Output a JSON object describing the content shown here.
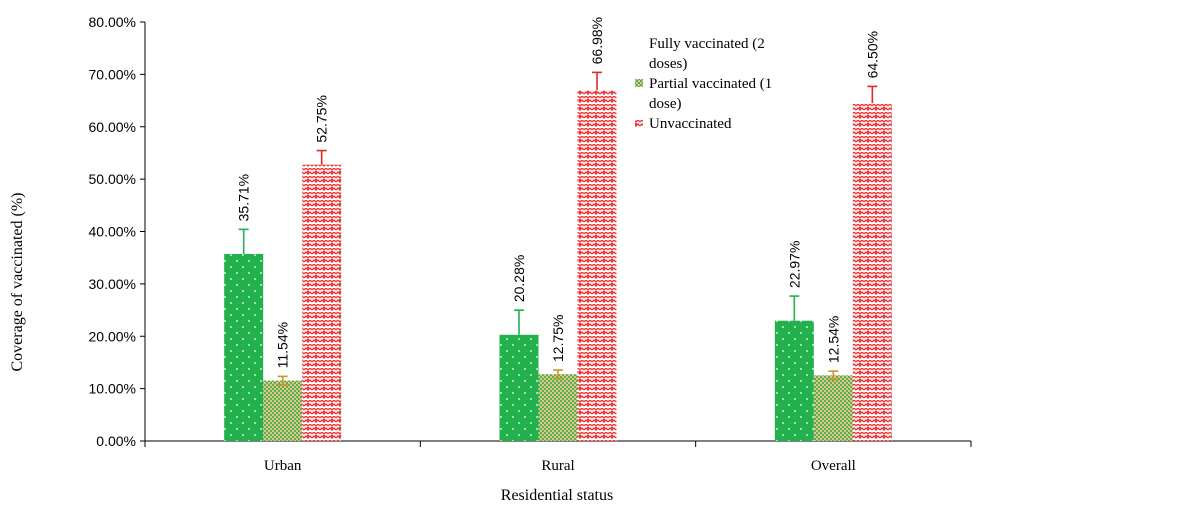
{
  "chart_data": {
    "type": "bar",
    "title": "",
    "xlabel": "Residential status",
    "ylabel": "Coverage of vaccinated (%)",
    "ylim": [
      0,
      80
    ],
    "yticks": [
      "0.00%",
      "10.00%",
      "20.00%",
      "30.00%",
      "40.00%",
      "50.00%",
      "60.00%",
      "70.00%",
      "80.00%"
    ],
    "categories": [
      "Urban",
      "Rural",
      "Overall"
    ],
    "series": [
      {
        "name": "Fully vaccinated (2 doses)",
        "values": [
          35.71,
          20.28,
          22.97
        ],
        "labels": [
          "35.71%",
          "20.28%",
          "22.97%"
        ],
        "error": [
          4.7,
          4.7,
          4.7
        ],
        "color": "#22b14c",
        "error_color": "#22b14c"
      },
      {
        "name": "Partial vaccinated (1 dose)",
        "values": [
          11.54,
          12.75,
          12.54
        ],
        "labels": [
          "11.54%",
          "12.75%",
          "12.54%"
        ],
        "error": [
          0.8,
          0.8,
          0.8
        ],
        "color": "#c9b77a",
        "error_color": "#c8962a"
      },
      {
        "name": "Unvaccinated",
        "values": [
          52.75,
          66.98,
          64.5
        ],
        "labels": [
          "52.75%",
          "66.98%",
          "64.50%"
        ],
        "error": [
          2.7,
          3.4,
          3.2
        ],
        "color": "#ea3a3a",
        "error_color": "#e02828"
      }
    ],
    "legend_position": "top-right",
    "legend_lines": [
      [
        "Fully vaccinated (2",
        "doses)"
      ],
      [
        "Partial vaccinated (1",
        "dose)"
      ],
      [
        "Unvaccinated"
      ]
    ],
    "grid": false
  }
}
